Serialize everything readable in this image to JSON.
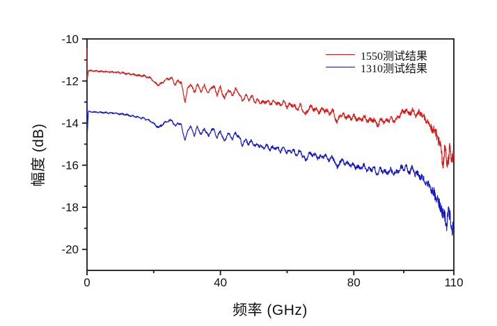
{
  "chart_data": {
    "type": "line",
    "title": "",
    "xlabel": "频率 (GHz)",
    "ylabel": "幅度 (dB)",
    "xlim": [
      0,
      110
    ],
    "ylim": [
      -21,
      -10
    ],
    "x_major_ticks": [
      0,
      40,
      80,
      110
    ],
    "x_minor_ticks": [
      20,
      60,
      95
    ],
    "y_major_ticks": [
      -10,
      -12,
      -14,
      -16,
      -18,
      -20
    ],
    "y_minor_ticks": [
      -11,
      -13,
      -15,
      -17,
      -19
    ],
    "grid": false,
    "frame": true,
    "axis_color": "#1a1a1a",
    "tick_label_color": "#111111",
    "legend_position": "top-right-inside",
    "noise_amp_profile": [
      [
        0,
        0.03
      ],
      [
        30,
        0.045
      ],
      [
        45,
        0.06
      ],
      [
        60,
        0.07
      ],
      [
        80,
        0.085
      ],
      [
        95,
        0.1
      ],
      [
        102,
        0.15
      ],
      [
        105,
        0.25
      ],
      [
        108,
        0.32
      ],
      [
        110,
        0.35
      ]
    ],
    "ripple_amp_profile": [
      [
        0,
        0.012
      ],
      [
        24,
        0.03
      ],
      [
        40,
        0.05
      ],
      [
        55,
        0.075
      ],
      [
        110,
        0.085
      ]
    ],
    "series": [
      {
        "name": "1550测试结果",
        "color": "#e01212",
        "seed": 7,
        "start_spike": {
          "x": 0,
          "from": -10.45,
          "to": -11.95
        },
        "anchors": [
          [
            0,
            -10.45
          ],
          [
            0.05,
            -11.95
          ],
          [
            0.4,
            -11.5
          ],
          [
            2,
            -11.52
          ],
          [
            5,
            -11.55
          ],
          [
            8,
            -11.58
          ],
          [
            11,
            -11.62
          ],
          [
            14,
            -11.7
          ],
          [
            17,
            -11.76
          ],
          [
            19,
            -11.85
          ],
          [
            20.5,
            -12.1
          ],
          [
            21.5,
            -12.2
          ],
          [
            22.5,
            -12.08
          ],
          [
            24,
            -11.9
          ],
          [
            25.5,
            -11.87
          ],
          [
            26.5,
            -12.2
          ],
          [
            27.2,
            -11.97
          ],
          [
            28.3,
            -12.1
          ],
          [
            29.4,
            -13.0
          ],
          [
            30.2,
            -12.35
          ],
          [
            31,
            -12.12
          ],
          [
            32.2,
            -12.55
          ],
          [
            33,
            -12.15
          ],
          [
            34.3,
            -12.5
          ],
          [
            35.2,
            -12.2
          ],
          [
            36.4,
            -12.6
          ],
          [
            37.3,
            -12.25
          ],
          [
            38.2,
            -12.32
          ],
          [
            39,
            -12.65
          ],
          [
            40,
            -12.3
          ],
          [
            41.2,
            -12.85
          ],
          [
            42.3,
            -12.4
          ],
          [
            43.5,
            -12.65
          ],
          [
            44.5,
            -12.42
          ],
          [
            45.5,
            -12.52
          ],
          [
            46.5,
            -12.95
          ],
          [
            47.5,
            -12.7
          ],
          [
            48.5,
            -12.85
          ],
          [
            49.5,
            -12.75
          ],
          [
            50.5,
            -13.0
          ],
          [
            51.5,
            -12.9
          ],
          [
            52.5,
            -13.05
          ],
          [
            53.5,
            -12.95
          ],
          [
            55,
            -13.05
          ],
          [
            56.5,
            -13.0
          ],
          [
            58,
            -13.15
          ],
          [
            59,
            -13.02
          ],
          [
            60,
            -13.2
          ],
          [
            61.5,
            -13.1
          ],
          [
            63,
            -13.35
          ],
          [
            64,
            -13.15
          ],
          [
            65.5,
            -13.65
          ],
          [
            66.5,
            -13.25
          ],
          [
            68,
            -13.3
          ],
          [
            69.5,
            -13.45
          ],
          [
            71,
            -13.35
          ],
          [
            72.5,
            -13.5
          ],
          [
            74,
            -13.45
          ],
          [
            75,
            -14.05
          ],
          [
            75.8,
            -13.6
          ],
          [
            77,
            -13.65
          ],
          [
            78.5,
            -13.75
          ],
          [
            80,
            -13.7
          ],
          [
            81.5,
            -13.85
          ],
          [
            83,
            -13.75
          ],
          [
            84.5,
            -13.9
          ],
          [
            86,
            -13.8
          ],
          [
            87,
            -14.1
          ],
          [
            88,
            -13.85
          ],
          [
            89.5,
            -13.95
          ],
          [
            91,
            -13.8
          ],
          [
            92.5,
            -13.9
          ],
          [
            94,
            -13.55
          ],
          [
            95.5,
            -13.35
          ],
          [
            96.5,
            -13.55
          ],
          [
            97.5,
            -13.4
          ],
          [
            98.5,
            -13.6
          ],
          [
            100,
            -13.5
          ],
          [
            101.5,
            -13.85
          ],
          [
            103,
            -14.1
          ],
          [
            104,
            -14.35
          ],
          [
            105,
            -14.6
          ],
          [
            106,
            -15.1
          ],
          [
            106.8,
            -15.9
          ],
          [
            107.3,
            -15.2
          ],
          [
            108,
            -15.9
          ],
          [
            108.7,
            -15.3
          ],
          [
            109.3,
            -15.7
          ],
          [
            110,
            -15.45
          ]
        ]
      },
      {
        "name": "1310测试结果",
        "color": "#1216c8",
        "seed": 13,
        "start_spike": {
          "x": 0,
          "from": -12.9,
          "to": -14.6
        },
        "anchors": [
          [
            0,
            -12.9
          ],
          [
            0.05,
            -14.6
          ],
          [
            0.4,
            -13.45
          ],
          [
            2,
            -13.47
          ],
          [
            5,
            -13.5
          ],
          [
            8,
            -13.53
          ],
          [
            11,
            -13.58
          ],
          [
            14,
            -13.67
          ],
          [
            17,
            -13.78
          ],
          [
            19,
            -13.9
          ],
          [
            20.5,
            -14.1
          ],
          [
            21.5,
            -14.2
          ],
          [
            22.5,
            -14.08
          ],
          [
            24,
            -13.9
          ],
          [
            25.5,
            -13.87
          ],
          [
            26.5,
            -14.2
          ],
          [
            27.2,
            -13.97
          ],
          [
            28.3,
            -14.12
          ],
          [
            29.4,
            -14.85
          ],
          [
            30.2,
            -14.35
          ],
          [
            31,
            -14.14
          ],
          [
            32.2,
            -14.6
          ],
          [
            33,
            -14.18
          ],
          [
            34.3,
            -14.55
          ],
          [
            35.2,
            -14.25
          ],
          [
            36.4,
            -14.65
          ],
          [
            37.3,
            -14.3
          ],
          [
            38.2,
            -14.37
          ],
          [
            39,
            -14.7
          ],
          [
            40,
            -14.38
          ],
          [
            41.2,
            -14.9
          ],
          [
            42.3,
            -14.48
          ],
          [
            43.5,
            -14.73
          ],
          [
            44.5,
            -14.5
          ],
          [
            45.5,
            -14.62
          ],
          [
            46.5,
            -15.05
          ],
          [
            47.5,
            -14.8
          ],
          [
            48.5,
            -14.97
          ],
          [
            49.5,
            -14.87
          ],
          [
            50.5,
            -15.12
          ],
          [
            51.5,
            -15.02
          ],
          [
            52.5,
            -15.18
          ],
          [
            53.5,
            -15.08
          ],
          [
            55,
            -15.22
          ],
          [
            56.5,
            -15.15
          ],
          [
            58,
            -15.3
          ],
          [
            59,
            -15.18
          ],
          [
            60,
            -15.38
          ],
          [
            61.5,
            -15.28
          ],
          [
            63,
            -15.5
          ],
          [
            64,
            -15.33
          ],
          [
            65.5,
            -15.8
          ],
          [
            66.5,
            -15.45
          ],
          [
            68,
            -15.5
          ],
          [
            69.5,
            -15.65
          ],
          [
            71,
            -15.55
          ],
          [
            72.5,
            -15.72
          ],
          [
            74,
            -15.65
          ],
          [
            75,
            -16.2
          ],
          [
            75.8,
            -15.8
          ],
          [
            77,
            -15.85
          ],
          [
            78.5,
            -15.97
          ],
          [
            80,
            -16.0
          ],
          [
            81.5,
            -16.15
          ],
          [
            83,
            -16.05
          ],
          [
            84.5,
            -16.25
          ],
          [
            86,
            -16.15
          ],
          [
            87,
            -16.45
          ],
          [
            88,
            -16.2
          ],
          [
            89.5,
            -16.35
          ],
          [
            91,
            -16.25
          ],
          [
            92.5,
            -16.4
          ],
          [
            94,
            -16.15
          ],
          [
            95.5,
            -16.08
          ],
          [
            96.5,
            -16.35
          ],
          [
            97.5,
            -16.18
          ],
          [
            98.5,
            -16.4
          ],
          [
            100,
            -16.5
          ],
          [
            101.5,
            -16.8
          ],
          [
            103,
            -17.1
          ],
          [
            104,
            -17.35
          ],
          [
            105,
            -17.6
          ],
          [
            106,
            -18.0
          ],
          [
            107,
            -18.3
          ],
          [
            107.8,
            -18.85
          ],
          [
            108.4,
            -18.2
          ],
          [
            109,
            -18.6
          ],
          [
            109.5,
            -19.1
          ],
          [
            110,
            -18.55
          ]
        ]
      }
    ]
  }
}
